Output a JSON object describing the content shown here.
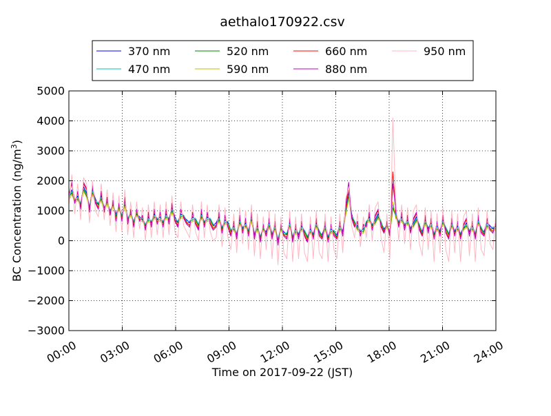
{
  "chart_data": {
    "type": "line",
    "title": "aethalo170922.csv",
    "xlabel": "Time on 2017-09-22 (JST)",
    "ylabel": "BC Concentration (ng/m",
    "ylabel_sup": "3",
    "ylabel_close": ")",
    "xlim": [
      0,
      24
    ],
    "ylim": [
      -3000,
      5000
    ],
    "x_ticks": [
      0,
      3,
      6,
      9,
      12,
      15,
      18,
      21,
      24
    ],
    "x_tick_labels": [
      "00:00",
      "03:00",
      "06:00",
      "09:00",
      "12:00",
      "15:00",
      "18:00",
      "21:00",
      "24:00"
    ],
    "y_ticks": [
      -3000,
      -2000,
      -1000,
      0,
      1000,
      2000,
      3000,
      4000,
      5000
    ],
    "y_tick_labels": [
      "−3000",
      "−2000",
      "−1000",
      "0",
      "1000",
      "2000",
      "3000",
      "4000",
      "5000"
    ],
    "grid": true,
    "legend_position": "top-center",
    "series": [
      {
        "name": "370 nm",
        "color": "#0000ff",
        "values": [
          1400,
          1700,
          1300,
          1500,
          1200,
          1800,
          1600,
          1100,
          1700,
          1400,
          1200,
          1500,
          1100,
          1300,
          1000,
          1200,
          900,
          1100,
          800,
          1300,
          700,
          1000,
          600,
          900,
          800,
          700,
          500,
          800,
          600,
          900,
          700,
          800,
          600,
          900,
          700,
          1100,
          800,
          600,
          900,
          800,
          700,
          600,
          800,
          700,
          500,
          900,
          600,
          800,
          700,
          500,
          600,
          800,
          400,
          700,
          600,
          300,
          500,
          200,
          700,
          400,
          600,
          300,
          800,
          200,
          500,
          100,
          400,
          300,
          600,
          200,
          500,
          0,
          400,
          300,
          200,
          600,
          100,
          400,
          200,
          500,
          300,
          100,
          400,
          200,
          600,
          300,
          200,
          500,
          100,
          400,
          300,
          200,
          500,
          300,
          1000,
          1600,
          900,
          600,
          500,
          300,
          400,
          600,
          800,
          500,
          700,
          900,
          600,
          400,
          500,
          300,
          1200,
          900,
          600,
          800,
          500,
          700,
          400,
          600,
          800,
          500,
          300,
          700,
          400,
          600,
          200,
          500,
          300,
          700,
          400,
          200,
          600,
          300,
          500,
          200,
          400,
          600,
          300,
          500,
          200,
          700,
          400,
          300,
          600,
          500,
          400,
          500
        ]
      },
      {
        "name": "470 nm",
        "color": "#00bfbf",
        "values": [
          1500,
          1650,
          1350,
          1450,
          1250,
          1750,
          1550,
          1150,
          1650,
          1350,
          1250,
          1450,
          1050,
          1350,
          950,
          1250,
          850,
          1150,
          850,
          1250,
          750,
          950,
          650,
          950,
          750,
          750,
          550,
          750,
          650,
          850,
          750,
          750,
          650,
          850,
          750,
          1050,
          750,
          650,
          850,
          850,
          650,
          650,
          750,
          750,
          550,
          850,
          650,
          750,
          750,
          550,
          550,
          750,
          450,
          650,
          650,
          350,
          450,
          250,
          650,
          450,
          550,
          350,
          750,
          250,
          450,
          150,
          450,
          250,
          550,
          250,
          450,
          50,
          450,
          250,
          250,
          550,
          150,
          350,
          250,
          450,
          350,
          150,
          350,
          250,
          550,
          350,
          150,
          450,
          150,
          350,
          350,
          150,
          450,
          350,
          950,
          1500,
          850,
          650,
          450,
          350,
          350,
          650,
          750,
          550,
          650,
          850,
          650,
          350,
          550,
          250,
          1150,
          850,
          650,
          750,
          550,
          650,
          450,
          550,
          750,
          550,
          250,
          650,
          450,
          550,
          250,
          450,
          350,
          650,
          450,
          250,
          550,
          350,
          450,
          250,
          450,
          550,
          350,
          450,
          250,
          650,
          450,
          250,
          550,
          450,
          450,
          450
        ]
      },
      {
        "name": "520 nm",
        "color": "#008000",
        "values": [
          1450,
          1600,
          1300,
          1400,
          1200,
          1700,
          1500,
          1100,
          1600,
          1300,
          1200,
          1400,
          1000,
          1300,
          900,
          1200,
          800,
          1100,
          800,
          1200,
          700,
          900,
          600,
          900,
          700,
          700,
          500,
          700,
          600,
          800,
          700,
          700,
          600,
          800,
          700,
          1000,
          700,
          600,
          800,
          800,
          600,
          600,
          700,
          700,
          500,
          800,
          600,
          700,
          700,
          500,
          500,
          700,
          400,
          600,
          600,
          300,
          400,
          200,
          600,
          400,
          500,
          300,
          700,
          200,
          400,
          100,
          400,
          200,
          500,
          200,
          400,
          0,
          400,
          200,
          200,
          500,
          100,
          300,
          200,
          400,
          300,
          100,
          300,
          200,
          500,
          300,
          100,
          400,
          100,
          300,
          300,
          100,
          400,
          300,
          900,
          1450,
          800,
          600,
          400,
          300,
          300,
          600,
          700,
          500,
          600,
          800,
          600,
          300,
          500,
          200,
          1100,
          800,
          600,
          700,
          500,
          600,
          400,
          500,
          700,
          500,
          200,
          600,
          400,
          500,
          200,
          400,
          300,
          600,
          400,
          200,
          500,
          300,
          400,
          200,
          400,
          500,
          300,
          400,
          200,
          600,
          400,
          200,
          500,
          400,
          400,
          400
        ]
      },
      {
        "name": "590 nm",
        "color": "#bfbf00",
        "values": [
          1350,
          1550,
          1250,
          1350,
          1150,
          1650,
          1450,
          1050,
          1550,
          1250,
          1150,
          1350,
          950,
          1250,
          850,
          1150,
          750,
          1050,
          750,
          1150,
          650,
          850,
          550,
          850,
          650,
          650,
          450,
          650,
          550,
          750,
          650,
          650,
          550,
          750,
          650,
          950,
          650,
          550,
          750,
          750,
          550,
          550,
          650,
          650,
          450,
          750,
          550,
          650,
          650,
          450,
          450,
          650,
          350,
          550,
          550,
          250,
          350,
          150,
          550,
          350,
          450,
          250,
          650,
          150,
          350,
          50,
          350,
          150,
          450,
          150,
          350,
          -50,
          350,
          150,
          150,
          450,
          50,
          250,
          150,
          350,
          250,
          50,
          250,
          150,
          450,
          250,
          50,
          350,
          50,
          250,
          250,
          50,
          350,
          250,
          850,
          1400,
          750,
          550,
          350,
          250,
          250,
          550,
          650,
          450,
          550,
          750,
          550,
          250,
          450,
          150,
          1300,
          750,
          550,
          650,
          450,
          550,
          350,
          450,
          650,
          450,
          150,
          550,
          350,
          450,
          150,
          350,
          250,
          550,
          350,
          150,
          450,
          250,
          350,
          150,
          350,
          450,
          250,
          350,
          150,
          550,
          350,
          150,
          450,
          350,
          350,
          350
        ]
      },
      {
        "name": "660 nm",
        "color": "#ff0000",
        "values": [
          1550,
          1900,
          1300,
          1600,
          1100,
          1900,
          1700,
          1000,
          1800,
          1300,
          1100,
          1600,
          1000,
          1400,
          900,
          1300,
          700,
          1200,
          700,
          1400,
          600,
          1000,
          500,
          1000,
          700,
          800,
          400,
          900,
          500,
          1000,
          600,
          900,
          500,
          1000,
          600,
          1200,
          700,
          500,
          1000,
          800,
          600,
          500,
          900,
          600,
          400,
          1000,
          500,
          900,
          600,
          400,
          500,
          900,
          300,
          800,
          500,
          200,
          600,
          100,
          800,
          300,
          700,
          200,
          900,
          100,
          600,
          0,
          500,
          200,
          700,
          100,
          600,
          -100,
          500,
          200,
          100,
          700,
          0,
          500,
          100,
          600,
          200,
          0,
          500,
          100,
          700,
          200,
          100,
          600,
          0,
          500,
          200,
          100,
          600,
          200,
          1100,
          1700,
          800,
          500,
          600,
          200,
          500,
          500,
          900,
          400,
          800,
          1000,
          500,
          300,
          600,
          200,
          2300,
          1000,
          500,
          900,
          400,
          800,
          300,
          700,
          900,
          400,
          200,
          800,
          300,
          700,
          100,
          600,
          200,
          800,
          300,
          100,
          700,
          200,
          600,
          100,
          500,
          700,
          200,
          600,
          100,
          800,
          300,
          200,
          700,
          400,
          300,
          600
        ]
      },
      {
        "name": "880 nm",
        "color": "#bf00bf",
        "values": [
          1500,
          1950,
          1250,
          1650,
          1050,
          1950,
          1750,
          950,
          1850,
          1250,
          1050,
          1650,
          950,
          1450,
          850,
          1350,
          650,
          1250,
          650,
          1450,
          550,
          1050,
          450,
          1050,
          650,
          850,
          350,
          950,
          450,
          1050,
          550,
          950,
          450,
          1050,
          550,
          1250,
          650,
          450,
          1050,
          750,
          550,
          450,
          950,
          550,
          350,
          1050,
          450,
          950,
          550,
          350,
          450,
          950,
          250,
          850,
          450,
          150,
          650,
          50,
          850,
          250,
          750,
          150,
          950,
          50,
          650,
          -50,
          550,
          150,
          750,
          50,
          650,
          -150,
          550,
          150,
          50,
          750,
          -50,
          550,
          50,
          650,
          150,
          -50,
          550,
          50,
          750,
          150,
          50,
          650,
          -50,
          550,
          150,
          50,
          650,
          150,
          1200,
          1950,
          750,
          450,
          650,
          150,
          550,
          450,
          950,
          350,
          850,
          1050,
          450,
          250,
          650,
          150,
          1900,
          1050,
          450,
          950,
          350,
          850,
          250,
          750,
          950,
          350,
          150,
          850,
          250,
          750,
          50,
          650,
          150,
          850,
          250,
          50,
          750,
          150,
          650,
          50,
          550,
          750,
          150,
          650,
          50,
          850,
          250,
          150,
          750,
          350,
          250,
          650
        ]
      },
      {
        "name": "950 nm",
        "color": "#ffb6c1",
        "values": [
          1200,
          2200,
          900,
          1900,
          700,
          2100,
          1900,
          600,
          2000,
          1000,
          800,
          1900,
          700,
          1700,
          500,
          1600,
          300,
          1500,
          300,
          1700,
          200,
          1300,
          100,
          1300,
          400,
          1100,
          0,
          1200,
          100,
          1300,
          200,
          1200,
          100,
          1300,
          200,
          1500,
          300,
          100,
          1300,
          500,
          300,
          100,
          1200,
          300,
          0,
          1300,
          100,
          1200,
          300,
          0,
          100,
          1200,
          -200,
          1100,
          100,
          -300,
          900,
          -400,
          1100,
          -100,
          1000,
          -300,
          1200,
          -500,
          900,
          -600,
          800,
          -300,
          1000,
          -600,
          900,
          -800,
          800,
          -400,
          -600,
          1000,
          -700,
          800,
          -600,
          900,
          -400,
          -700,
          800,
          -600,
          1000,
          -400,
          -600,
          900,
          -700,
          800,
          -300,
          -600,
          900,
          -400,
          1400,
          1800,
          500,
          100,
          900,
          -200,
          800,
          100,
          1200,
          0,
          1100,
          1300,
          100,
          -400,
          900,
          -600,
          4100,
          1300,
          0,
          1200,
          -100,
          1100,
          -300,
          1000,
          1200,
          -100,
          -500,
          1100,
          -300,
          1000,
          -700,
          900,
          -400,
          1100,
          -300,
          -700,
          1000,
          -400,
          900,
          -700,
          800,
          1000,
          -500,
          900,
          -700,
          1100,
          -300,
          -500,
          1000,
          -100,
          -300,
          900
        ]
      }
    ]
  }
}
